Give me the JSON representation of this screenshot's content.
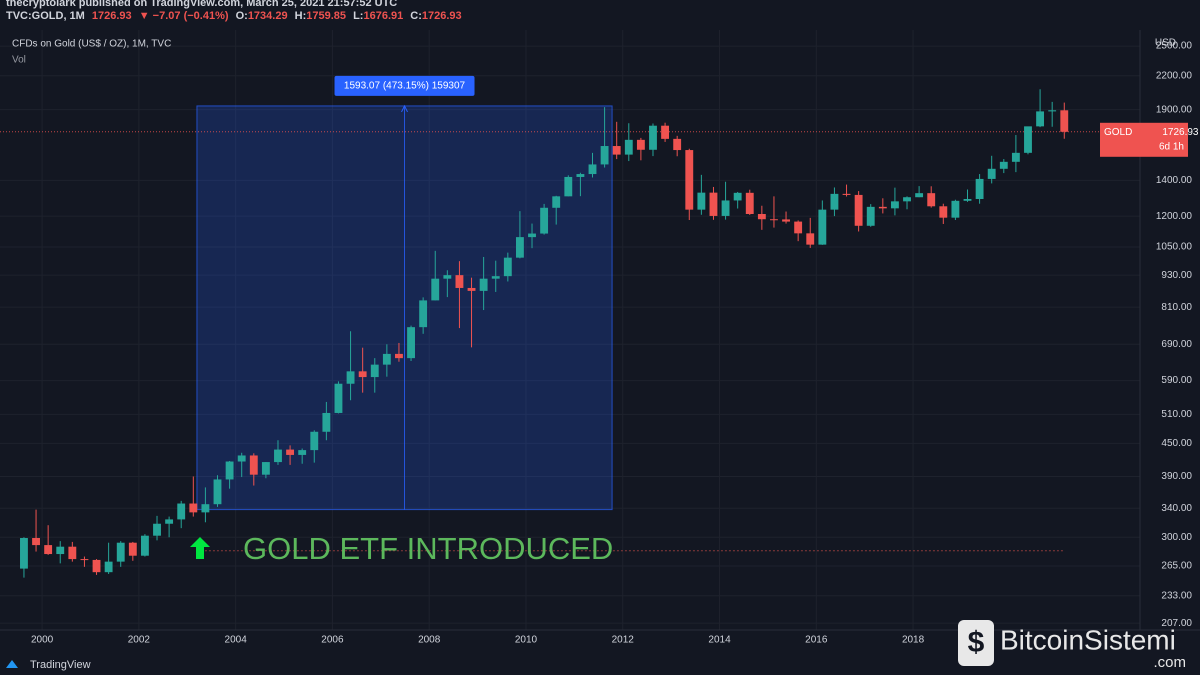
{
  "header": {
    "author_line": "thecryptolark published on TradingView.com, March 25, 2021 21:57:52 UTC",
    "symbol": "TVC:GOLD, 1M",
    "last": "1726.93",
    "change": "▼ −7.07 (−0.41%)",
    "ohlc": [
      {
        "label": "O:",
        "value": "1734.29"
      },
      {
        "label": "H:",
        "value": "1759.85"
      },
      {
        "label": "L:",
        "value": "1676.91"
      },
      {
        "label": "C:",
        "value": "1726.93"
      }
    ]
  },
  "footer": {
    "brand": "TradingView"
  },
  "watermark": {
    "text": "BitcoinSistemi",
    "suffix": ".com"
  },
  "chart_data": {
    "type": "candlestick",
    "title": "CFDs on Gold (US$ / OZ), 1M, TVC",
    "subtitle": "Vol",
    "currency": "USD",
    "log_scale": true,
    "grid": true,
    "up_color": "#26a69a",
    "down_color": "#ef5350",
    "xlim": [
      1999.13,
      2022.69
    ],
    "xticks": [
      2000,
      2002,
      2004,
      2006,
      2008,
      2010,
      2012,
      2014,
      2016,
      2018
    ],
    "ylim": [
      201,
      2680
    ],
    "yticks": [
      {
        "value": 207,
        "label": "207.00"
      },
      {
        "value": 233,
        "label": "233.00"
      },
      {
        "value": 265,
        "label": "265.00"
      },
      {
        "value": 300,
        "label": "300.00"
      },
      {
        "value": 340,
        "label": "340.00"
      },
      {
        "value": 390,
        "label": "390.00"
      },
      {
        "value": 450,
        "label": "450.00"
      },
      {
        "value": 510,
        "label": "510.00"
      },
      {
        "value": 590,
        "label": "590.00"
      },
      {
        "value": 690,
        "label": "690.00"
      },
      {
        "value": 810,
        "label": "810.00"
      },
      {
        "value": 930,
        "label": "930.00"
      },
      {
        "value": 1050,
        "label": "1050.00"
      },
      {
        "value": 1200,
        "label": "1200.00"
      },
      {
        "value": 1400,
        "label": "1400.00"
      },
      {
        "value": 1900,
        "label": "1900.00"
      },
      {
        "value": 2200,
        "label": "2200.00"
      },
      {
        "value": 2500,
        "label": "2500.00"
      }
    ],
    "x": [
      1999.625,
      1999.875,
      2000.125,
      2000.375,
      2000.625,
      2000.875,
      2001.125,
      2001.375,
      2001.625,
      2001.875,
      2002.125,
      2002.375,
      2002.625,
      2002.875,
      2003.125,
      2003.375,
      2003.625,
      2003.875,
      2004.125,
      2004.375,
      2004.625,
      2004.875,
      2005.125,
      2005.375,
      2005.625,
      2005.875,
      2006.125,
      2006.375,
      2006.625,
      2006.875,
      2007.125,
      2007.375,
      2007.625,
      2007.875,
      2008.125,
      2008.375,
      2008.625,
      2008.875,
      2009.125,
      2009.375,
      2009.625,
      2009.875,
      2010.125,
      2010.375,
      2010.625,
      2010.875,
      2011.125,
      2011.375,
      2011.625,
      2011.875,
      2012.125,
      2012.375,
      2012.625,
      2012.875,
      2013.125,
      2013.375,
      2013.625,
      2013.875,
      2014.125,
      2014.375,
      2014.625,
      2014.875,
      2015.125,
      2015.375,
      2015.625,
      2015.875,
      2016.125,
      2016.375,
      2016.625,
      2016.875,
      2017.125,
      2017.375,
      2017.625,
      2017.875,
      2018.125,
      2018.375,
      2018.625,
      2018.875,
      2019.125,
      2019.375,
      2019.625,
      2019.875,
      2020.125,
      2020.375,
      2020.625,
      2020.875,
      2021.125
    ],
    "open": [
      262,
      299,
      290,
      279,
      288,
      273,
      272,
      258,
      270,
      293,
      277,
      302,
      318,
      324,
      347,
      334,
      346,
      385,
      416,
      427,
      393,
      415,
      438,
      428,
      437,
      473,
      513,
      582,
      614,
      599,
      632,
      662,
      650,
      743,
      834,
      916,
      930,
      880,
      869,
      916,
      926,
      1003,
      1096,
      1113,
      1244,
      1307,
      1421,
      1439,
      1500,
      1624,
      1565,
      1668,
      1598,
      1773,
      1675,
      1596,
      1234,
      1328,
      1201,
      1284,
      1327,
      1211,
      1184,
      1183,
      1172,
      1114,
      1061,
      1234,
      1321,
      1315,
      1151,
      1249,
      1241,
      1279,
      1302,
      1325,
      1252,
      1192,
      1282,
      1292,
      1409,
      1472,
      1517,
      1577,
      1768,
      1886,
      1895
    ],
    "high": [
      300,
      338,
      316,
      295,
      294,
      276,
      273,
      293,
      295,
      294,
      304,
      329,
      328,
      351,
      390,
      372,
      392,
      417,
      432,
      431,
      415,
      456,
      446,
      440,
      476,
      538,
      588,
      730,
      680,
      650,
      690,
      694,
      748,
      845,
      1033,
      950,
      988,
      920,
      1006,
      990,
      1025,
      1226,
      1162,
      1265,
      1310,
      1431,
      1447,
      1577,
      1921,
      1803,
      1792,
      1682,
      1790,
      1796,
      1697,
      1605,
      1434,
      1361,
      1392,
      1332,
      1345,
      1255,
      1307,
      1224,
      1178,
      1191,
      1284,
      1358,
      1375,
      1337,
      1264,
      1296,
      1357,
      1307,
      1366,
      1365,
      1266,
      1288,
      1346,
      1439,
      1557,
      1535,
      1703,
      1765,
      2075,
      1965,
      1959
    ],
    "low": [
      252,
      282,
      278,
      268,
      270,
      264,
      255,
      256,
      264,
      271,
      276,
      296,
      300,
      312,
      328,
      320,
      342,
      370,
      389,
      375,
      387,
      410,
      410,
      412,
      414,
      456,
      512,
      542,
      560,
      560,
      600,
      640,
      642,
      722,
      834,
      846,
      740,
      681,
      800,
      865,
      905,
      1000,
      1045,
      1108,
      1157,
      1307,
      1308,
      1418,
      1480,
      1535,
      1522,
      1527,
      1555,
      1653,
      1554,
      1180,
      1207,
      1181,
      1182,
      1240,
      1206,
      1131,
      1142,
      1162,
      1077,
      1046,
      1060,
      1200,
      1306,
      1123,
      1146,
      1214,
      1204,
      1236,
      1302,
      1245,
      1160,
      1180,
      1276,
      1266,
      1382,
      1445,
      1451,
      1567,
      1762,
      1765,
      1676
    ],
    "close": [
      299,
      290,
      279,
      288,
      273,
      272,
      258,
      270,
      293,
      277,
      302,
      318,
      324,
      347,
      334,
      346,
      385,
      416,
      427,
      393,
      415,
      438,
      428,
      437,
      473,
      513,
      582,
      614,
      599,
      632,
      662,
      650,
      743,
      834,
      916,
      930,
      880,
      869,
      916,
      926,
      1003,
      1096,
      1113,
      1244,
      1307,
      1421,
      1439,
      1500,
      1624,
      1565,
      1668,
      1598,
      1773,
      1675,
      1596,
      1234,
      1328,
      1201,
      1284,
      1327,
      1211,
      1184,
      1183,
      1172,
      1114,
      1061,
      1234,
      1321,
      1315,
      1151,
      1249,
      1241,
      1279,
      1302,
      1325,
      1252,
      1192,
      1282,
      1292,
      1409,
      1472,
      1517,
      1577,
      1768,
      1886,
      1895,
      1727
    ],
    "measure": {
      "label": "1593.07 (473.15%) 159307",
      "x": [
        2003.2,
        2011.78
      ],
      "y": [
        338,
        1931
      ],
      "color": "#2962ff"
    },
    "annotation": {
      "text": "GOLD ETF INTRODUCED",
      "color": "#5cb85c",
      "arrow_color": "#00e640"
    },
    "hline": {
      "value": 283,
      "color": "#8a3a3a"
    },
    "price_label": {
      "name": "GOLD",
      "value": 1726.93,
      "countdown": "6d 1h",
      "color": "#ef5350"
    }
  }
}
